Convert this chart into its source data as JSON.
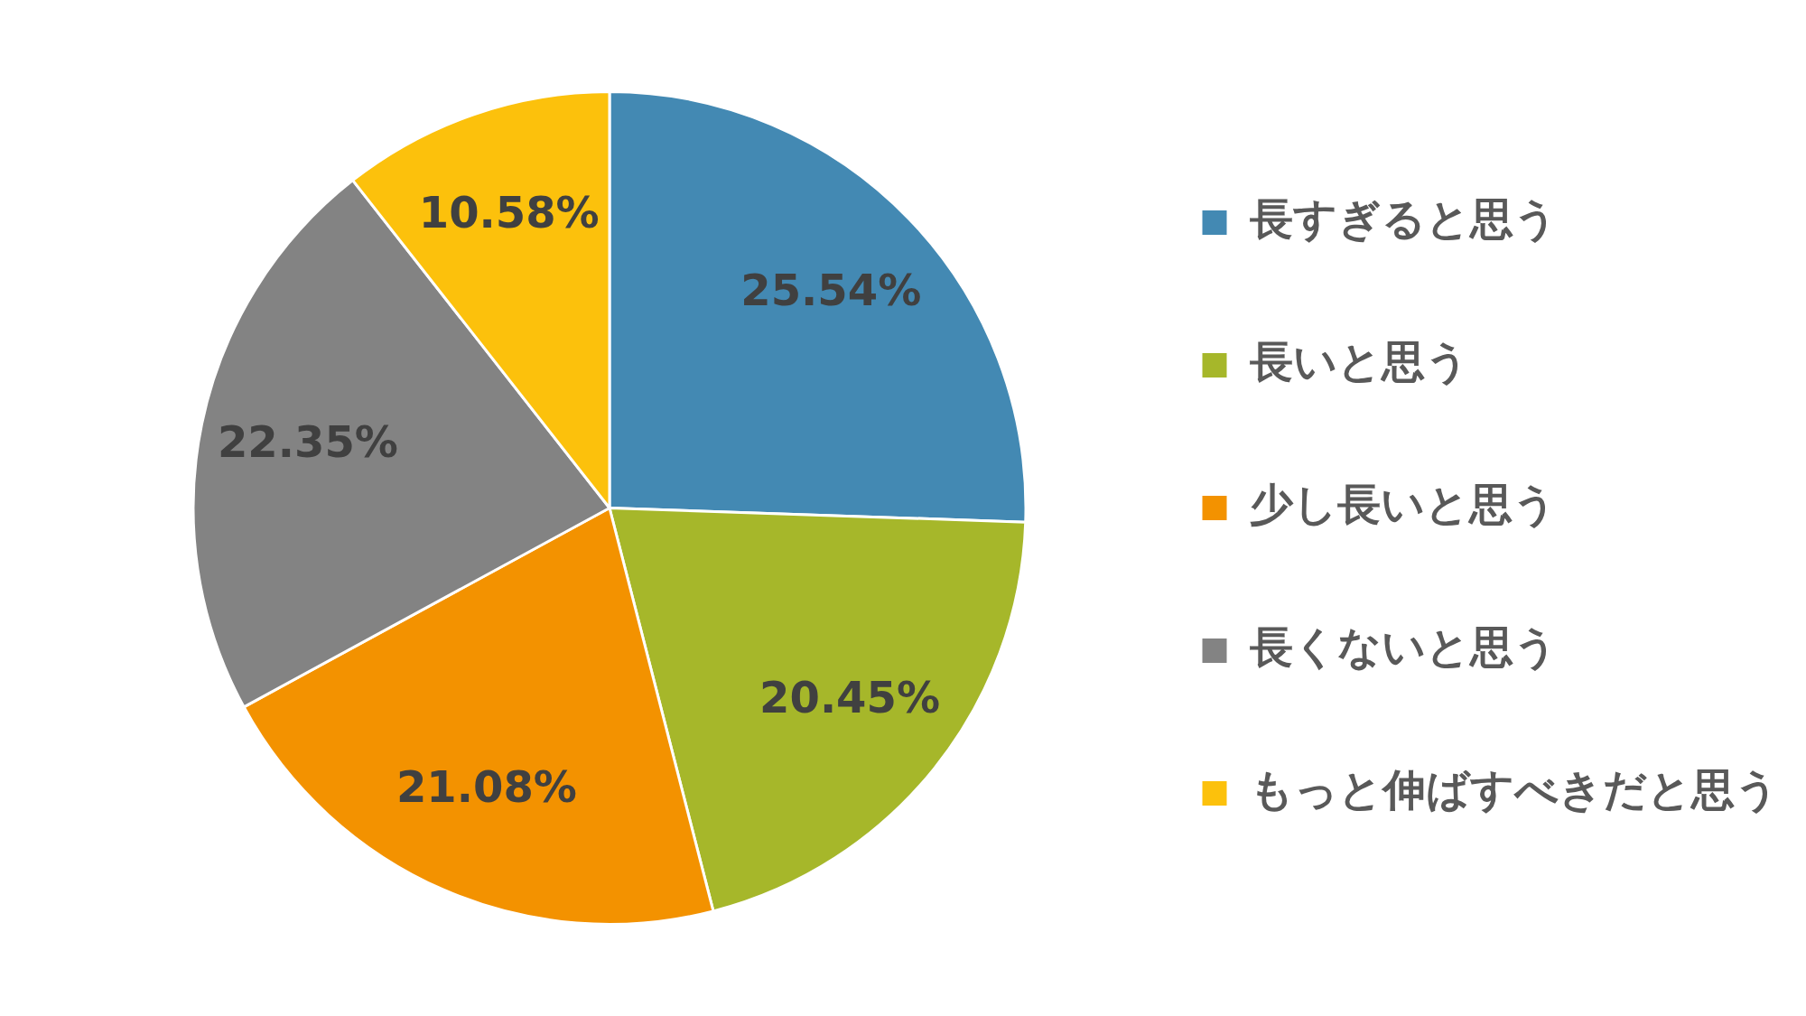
{
  "chart_data": {
    "type": "pie",
    "categories": [
      "長すぎると思う",
      "長いと思う",
      "少し長いと思う",
      "長くないと思う",
      "もっと伸ばすべきだと思う"
    ],
    "values": [
      25.54,
      20.45,
      21.08,
      22.35,
      10.58
    ],
    "value_labels": [
      "25.54%",
      "20.45%",
      "21.08%",
      "22.35%",
      "10.58%"
    ],
    "colors": [
      "#4389b3",
      "#a6b72a",
      "#f39200",
      "#838383",
      "#fcc10c"
    ],
    "legend": "right"
  }
}
